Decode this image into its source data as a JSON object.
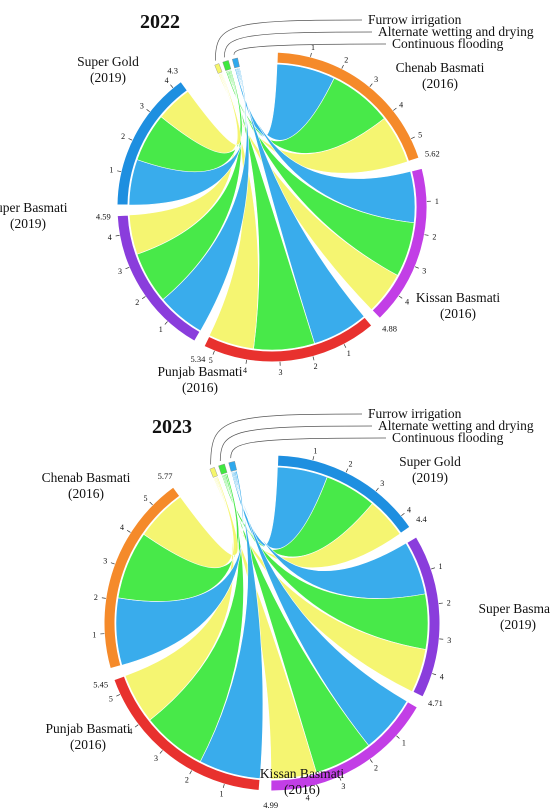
{
  "chart_data": [
    {
      "type": "chord",
      "title": "2022",
      "flows": [
        "Furrow irrigation",
        "Alternate wetting and drying",
        "Continuous flooding"
      ],
      "flow_colors": [
        "#f5f56a",
        "#3fe840",
        "#2fa8ec"
      ],
      "varieties": [
        {
          "name": "Chenab Basmati",
          "year": "(2016)",
          "color": "#f58a2a",
          "total": 5.62,
          "values": [
            1.6,
            2.1,
            1.92
          ],
          "ticks": [
            "1",
            "2",
            "3",
            "4",
            "5"
          ],
          "end_label": "5.62"
        },
        {
          "name": "Kissan Basmati",
          "year": "(2016)",
          "color": "#c23ee6",
          "total": 4.88,
          "values": [
            1.4,
            1.8,
            1.68
          ],
          "ticks": [
            "1",
            "2",
            "3",
            "4"
          ],
          "end_label": "4.88"
        },
        {
          "name": "Punjab Basmati",
          "year": "(2016)",
          "color": "#e8312e",
          "total": 5.34,
          "values": [
            1.5,
            2.0,
            1.84
          ],
          "ticks": [
            "1",
            "2",
            "3",
            "4",
            "5"
          ],
          "end_label": "5.34"
        },
        {
          "name": "Super Basmati",
          "year": "(2019)",
          "color": "#8a3ddc",
          "total": 4.59,
          "values": [
            1.3,
            1.7,
            1.59
          ],
          "ticks": [
            "1",
            "2",
            "3",
            "4"
          ],
          "end_label": "4.59"
        },
        {
          "name": "Super Gold",
          "year": "(2019)",
          "color": "#1e8fe0",
          "total": 4.3,
          "values": [
            1.2,
            1.6,
            1.5
          ],
          "ticks": [
            "1",
            "2",
            "3",
            "4"
          ],
          "end_label": "4.3"
        }
      ]
    },
    {
      "type": "chord",
      "title": "2023",
      "flows": [
        "Furrow irrigation",
        "Alternate wetting and drying",
        "Continuous flooding"
      ],
      "flow_colors": [
        "#f5f56a",
        "#3fe840",
        "#2fa8ec"
      ],
      "varieties": [
        {
          "name": "Super Gold",
          "year": "(2019)",
          "color": "#1e8fe0",
          "total": 4.4,
          "values": [
            1.25,
            1.6,
            1.55
          ],
          "ticks": [
            "1",
            "2",
            "3",
            "4"
          ],
          "end_label": "4.4"
        },
        {
          "name": "Super Basmati",
          "year": "(2019)",
          "color": "#8a3ddc",
          "total": 4.71,
          "values": [
            1.35,
            1.7,
            1.66
          ],
          "ticks": [
            "1",
            "2",
            "3",
            "4"
          ],
          "end_label": "4.71"
        },
        {
          "name": "Kissan Basmati",
          "year": "(2016)",
          "color": "#c23ee6",
          "total": 4.99,
          "values": [
            1.4,
            1.8,
            1.79
          ],
          "ticks": [
            "1",
            "2",
            "3",
            "4"
          ],
          "end_label": "4.99"
        },
        {
          "name": "Punjab Basmati",
          "year": "(2016)",
          "color": "#e8312e",
          "total": 5.45,
          "values": [
            1.55,
            2.0,
            1.9
          ],
          "ticks": [
            "1",
            "2",
            "3",
            "4",
            "5"
          ],
          "end_label": "5.45"
        },
        {
          "name": "Chenab Basmati",
          "year": "(2016)",
          "color": "#f58a2a",
          "total": 5.77,
          "values": [
            1.6,
            2.1,
            2.07
          ],
          "ticks": [
            "1",
            "2",
            "3",
            "4",
            "5"
          ],
          "end_label": "5.77"
        }
      ]
    }
  ]
}
